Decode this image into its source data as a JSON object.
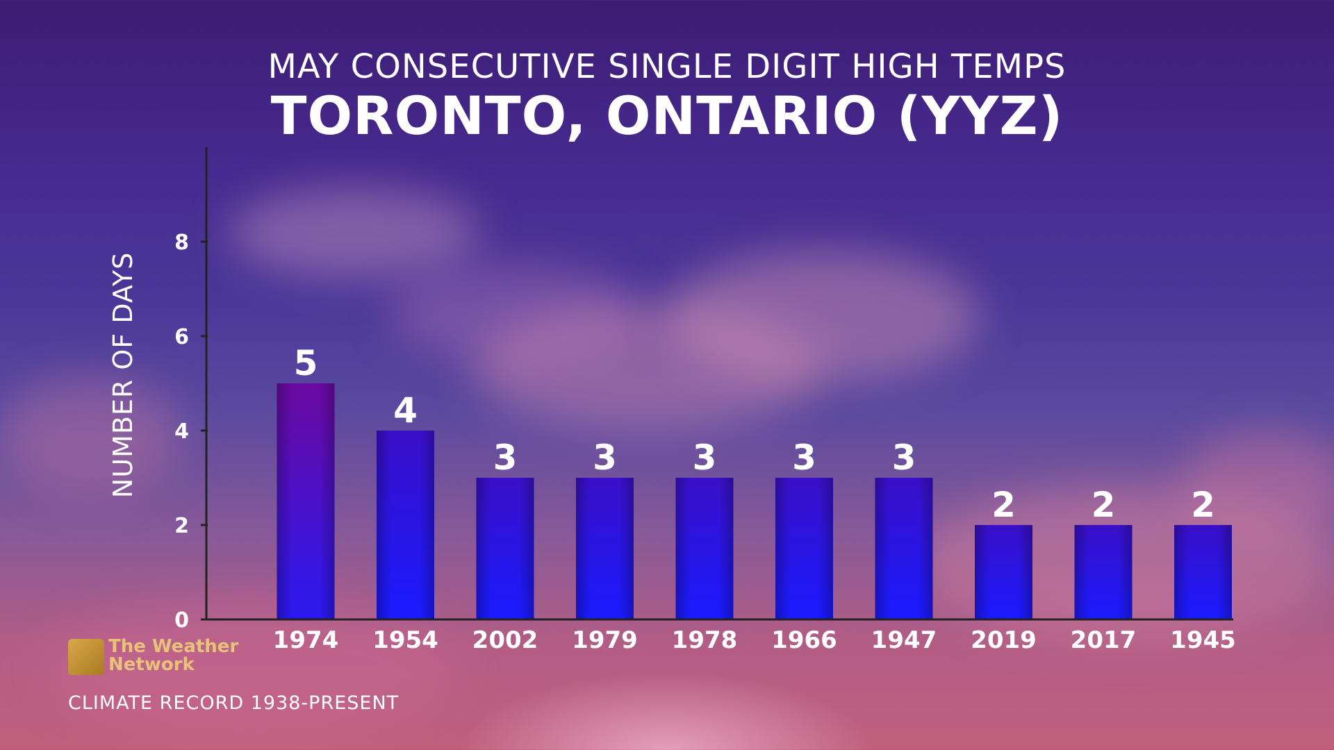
{
  "header": {
    "subtitle": "MAY CONSECUTIVE SINGLE DIGIT HIGH TEMPS",
    "title": "TORONTO, ONTARIO (YYZ)"
  },
  "branding": {
    "logo_line1": "The Weather",
    "logo_line2": "Network"
  },
  "footer": {
    "source": "CLIMATE RECORD 1938-PRESENT"
  },
  "chart_data": {
    "type": "bar",
    "title": "MAY CONSECUTIVE SINGLE DIGIT HIGH TEMPS",
    "subtitle": "TORONTO, ONTARIO (YYZ)",
    "ylabel": "NUMBER OF DAYS",
    "xlabel": "",
    "categories": [
      "1974",
      "1954",
      "2002",
      "1979",
      "1978",
      "1966",
      "1947",
      "2019",
      "2017",
      "1945"
    ],
    "values": [
      5,
      4,
      3,
      3,
      3,
      3,
      3,
      2,
      2,
      2
    ],
    "ylim": [
      0,
      10
    ],
    "yticks": [
      0,
      2,
      4,
      6,
      8
    ],
    "grid": false,
    "legend": "none",
    "colors": {
      "bar_top": "#3a10c8",
      "bar_bottom": "#1a1aff",
      "bar_top_highlight": "#6a0aa0",
      "axis": "#222222",
      "text": "#ffffff"
    }
  }
}
